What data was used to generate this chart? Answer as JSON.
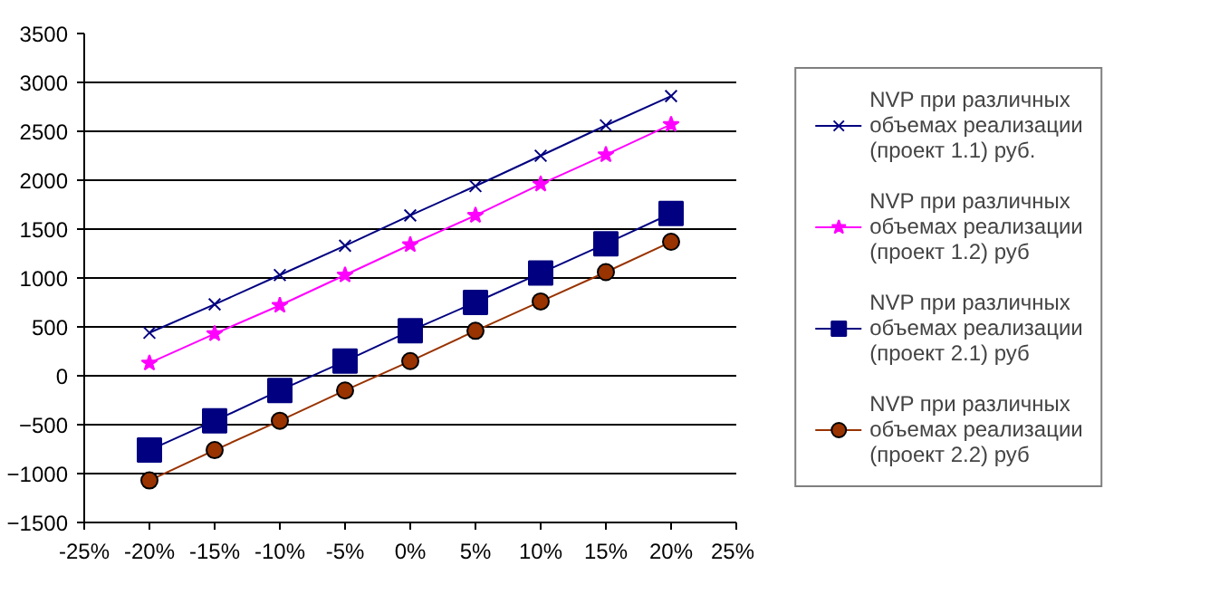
{
  "chart_data": {
    "type": "line",
    "x": [
      -20,
      -15,
      -10,
      -5,
      0,
      5,
      10,
      15,
      20
    ],
    "series": [
      {
        "name": "NVP при различных объемах реализации (проект 1.1) руб.",
        "color": "#000080",
        "marker": "cross",
        "values": [
          440,
          730,
          1030,
          1330,
          1640,
          1940,
          2250,
          2560,
          2860
        ]
      },
      {
        "name": "NVP при различных объемах реализации (проект 1.2) руб",
        "color": "#ff00ff",
        "marker": "star",
        "values": [
          130,
          430,
          720,
          1030,
          1340,
          1640,
          1960,
          2260,
          2570
        ]
      },
      {
        "name": "NVP при различных объемах реализации (проект 2.1) руб",
        "color": "#000080",
        "marker": "square",
        "values": [
          -760,
          -460,
          -150,
          150,
          460,
          750,
          1050,
          1350,
          1660
        ]
      },
      {
        "name": "NVP при различных объемах реализации (проект 2.2) руб",
        "color": "#993300",
        "marker": "circle",
        "values": [
          -1070,
          -760,
          -460,
          -150,
          150,
          460,
          760,
          1060,
          1370
        ]
      }
    ],
    "xlim": [
      -25,
      25
    ],
    "xticks": [
      {
        "value": -25,
        "label": "-25%"
      },
      {
        "value": -20,
        "label": "-20%"
      },
      {
        "value": -15,
        "label": "-15%"
      },
      {
        "value": -10,
        "label": "-10%"
      },
      {
        "value": -5,
        "label": "-5%"
      },
      {
        "value": 0,
        "label": "0%"
      },
      {
        "value": 5,
        "label": "5%"
      },
      {
        "value": 10,
        "label": "10%"
      },
      {
        "value": 15,
        "label": "15%"
      },
      {
        "value": 20,
        "label": "20%"
      },
      {
        "value": 25,
        "label": "25%"
      }
    ],
    "ylim": [
      -1500,
      3500
    ],
    "yticks": [
      -1500,
      -1000,
      -500,
      0,
      500,
      1000,
      1500,
      2000,
      2500,
      3000,
      3500
    ],
    "grid": "y",
    "legend": "right",
    "line_style": "solid"
  }
}
